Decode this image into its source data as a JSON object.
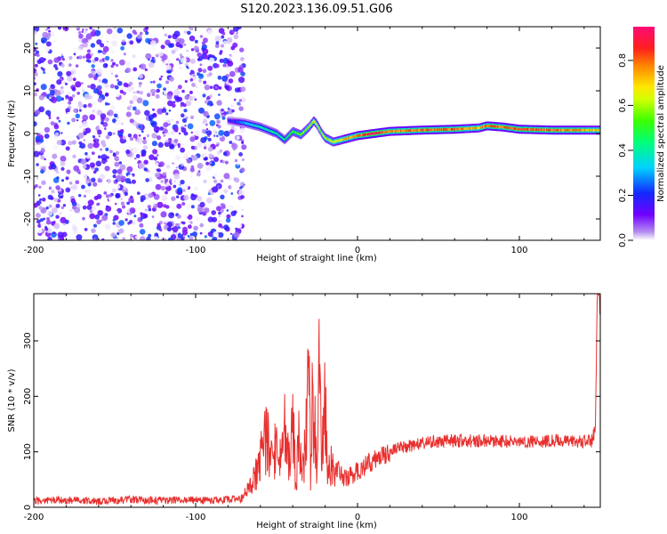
{
  "title": "S120.2023.136.09.51.G06",
  "chart_data": [
    {
      "type": "heatmap",
      "title": "",
      "xlabel": "Height of straight line (km)",
      "ylabel": "Frequency (Hz)",
      "xlim": [
        -200,
        150
      ],
      "ylim": [
        -25,
        25
      ],
      "x_ticks": [
        "-200",
        "-100",
        "0",
        "100"
      ],
      "x_tick_values": [
        -200,
        -100,
        0,
        100
      ],
      "y_ticks": [
        "-20",
        "-10",
        "0",
        "10",
        "20"
      ],
      "y_tick_values": [
        -20,
        -10,
        0,
        10,
        20
      ],
      "colorbar": {
        "label": "Normalized spectral amplitude",
        "range": [
          0,
          0.95
        ],
        "ticks": [
          "0.0",
          "0.2",
          "0.4",
          "0.6",
          "0.8"
        ],
        "tick_values": [
          0.0,
          0.2,
          0.4,
          0.6,
          0.8
        ],
        "colormap": "gist_rainbow reversed (purple low, red/pink high)"
      },
      "noise_region": {
        "x_range": [
          -200,
          -70
        ],
        "amplitude_range": [
          0.0,
          0.25
        ]
      },
      "ridge": {
        "x": [
          -80,
          -70,
          -60,
          -50,
          -45,
          -40,
          -35,
          -30,
          -27,
          -25,
          -22,
          -20,
          -15,
          -10,
          -5,
          0,
          10,
          20,
          40,
          60,
          75,
          80,
          90,
          100,
          120,
          150
        ],
        "frequency": [
          3,
          2.5,
          1.5,
          0,
          -1.5,
          0.5,
          -0.3,
          1.5,
          3,
          2,
          0,
          -1,
          -2,
          -1.5,
          -1,
          -0.5,
          0,
          0.5,
          0.8,
          1,
          1.3,
          1.8,
          1.5,
          1,
          0.8,
          0.8
        ],
        "amplitude": [
          0.15,
          0.3,
          0.4,
          0.4,
          0.45,
          0.5,
          0.55,
          0.6,
          0.7,
          0.65,
          0.6,
          0.6,
          0.65,
          0.7,
          0.75,
          0.8,
          0.9,
          0.75,
          0.8,
          0.8,
          0.7,
          0.85,
          0.8,
          0.85,
          0.8,
          0.7
        ]
      }
    },
    {
      "type": "line",
      "title": "",
      "xlabel": "Height of straight line (km)",
      "ylabel": "SNR (10 * v/v)",
      "xlim": [
        -200,
        150
      ],
      "ylim": [
        0,
        385
      ],
      "x_ticks": [
        "-200",
        "-100",
        "0",
        "100"
      ],
      "x_tick_values": [
        -200,
        -100,
        0,
        100
      ],
      "y_ticks": [
        "0",
        "100",
        "200",
        "300"
      ],
      "y_tick_values": [
        0,
        100,
        200,
        300
      ],
      "color": "#e8302e",
      "series": [
        {
          "x": [
            -200,
            -180,
            -160,
            -140,
            -120,
            -100,
            -90,
            -80,
            -72,
            -65,
            -60,
            -55,
            -52,
            -50,
            -48,
            -45,
            -42,
            -40,
            -38,
            -36,
            -34,
            -32,
            -30,
            -29,
            -28,
            -27,
            -26,
            -25,
            -24,
            -22,
            -21,
            -20,
            -19,
            -18,
            -16,
            -14,
            -12,
            -10,
            -8,
            -5,
            0,
            10,
            20,
            30,
            40,
            50,
            60,
            80,
            100,
            120,
            140,
            145,
            147,
            148,
            149,
            150
          ],
          "y": [
            12,
            13,
            11,
            14,
            12,
            13,
            12,
            14,
            15,
            40,
            90,
            130,
            60,
            140,
            80,
            160,
            70,
            150,
            40,
            130,
            60,
            110,
            330,
            40,
            180,
            120,
            140,
            60,
            235,
            120,
            160,
            175,
            110,
            60,
            80,
            55,
            70,
            62,
            50,
            55,
            65,
            85,
            100,
            110,
            115,
            118,
            120,
            120,
            118,
            120,
            118,
            120,
            145,
            375,
            385,
            350
          ]
        }
      ]
    }
  ]
}
